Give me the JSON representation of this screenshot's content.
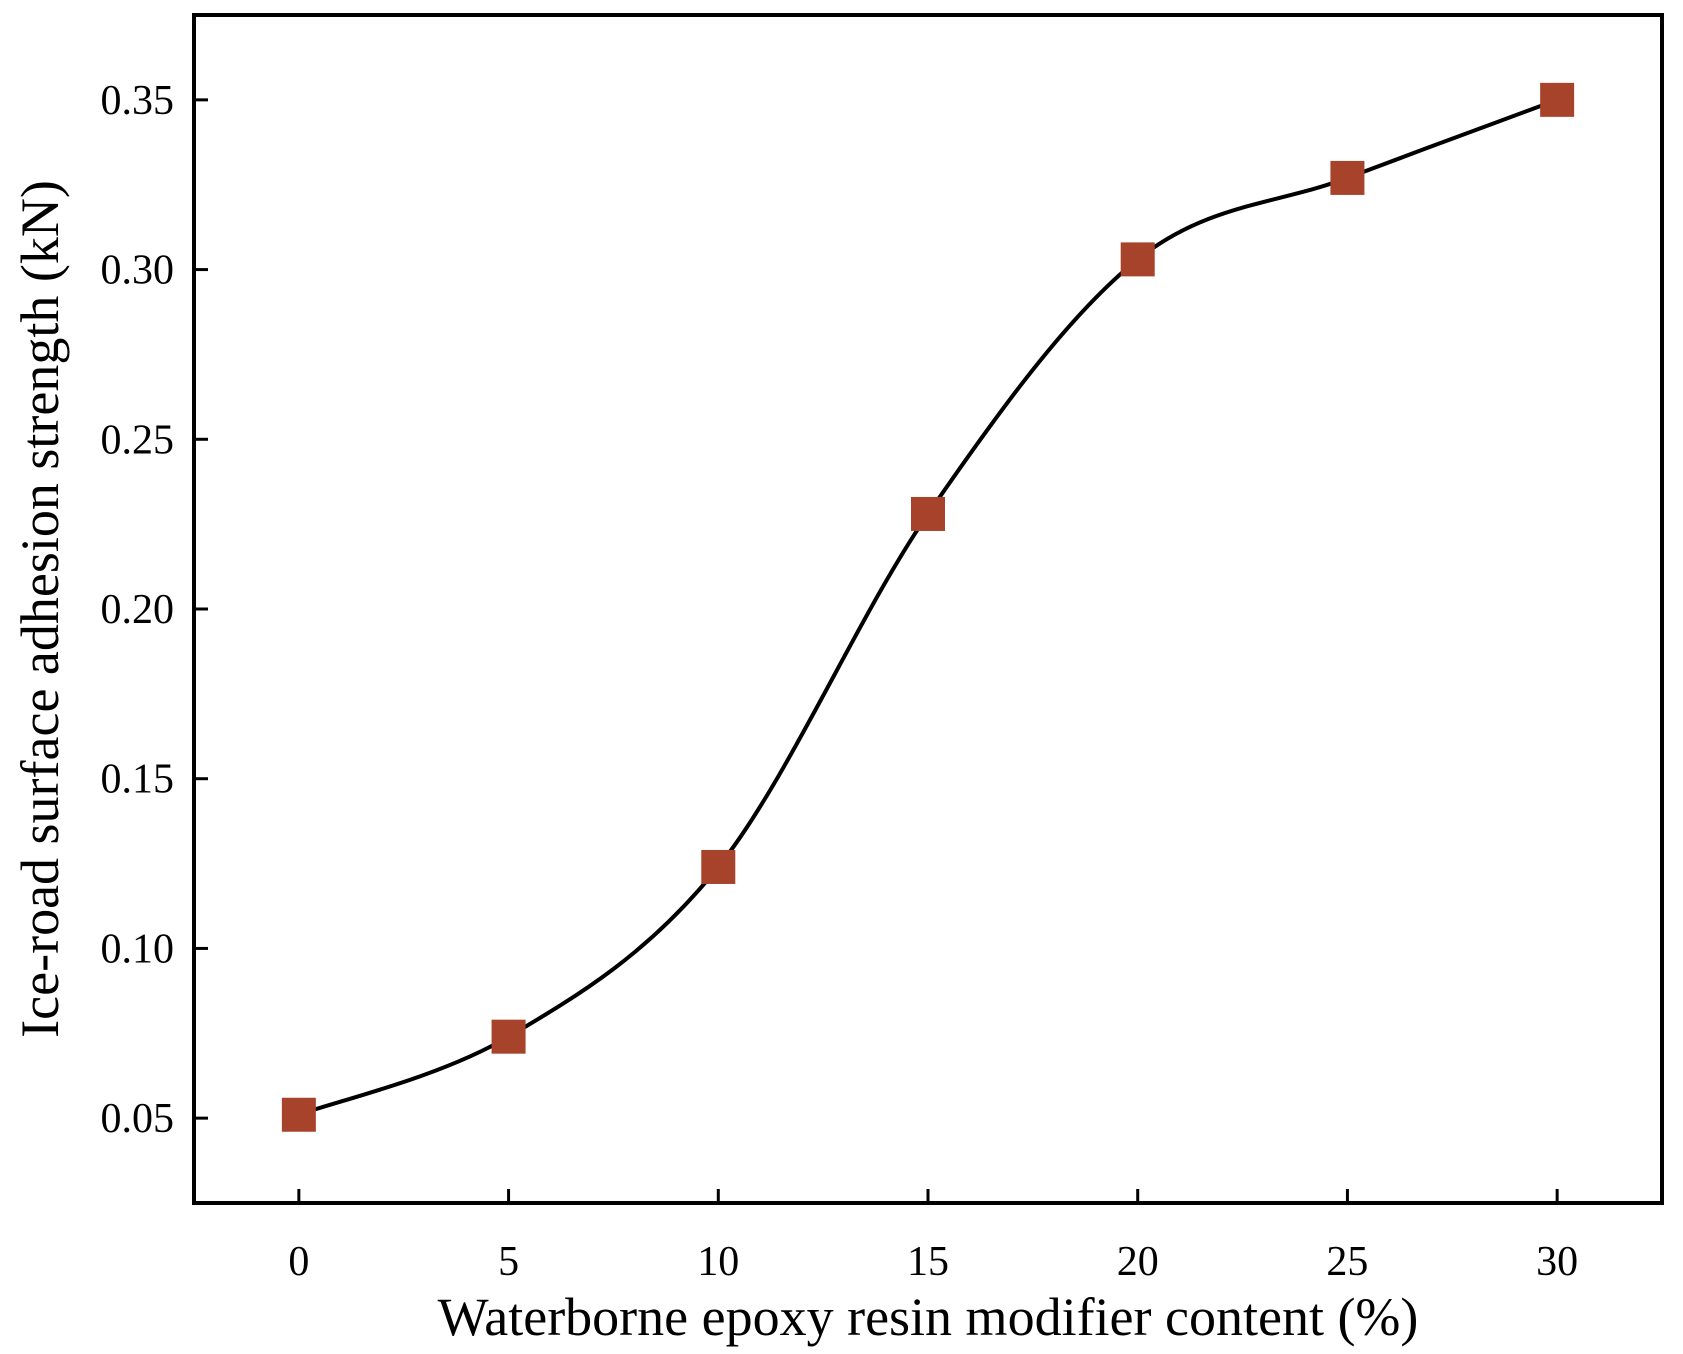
{
  "chart_data": {
    "type": "line",
    "xlabel": "Waterborne epoxy resin modifier content (%)",
    "ylabel": "Ice-road surface adhesion strength (kN)",
    "xlim": [
      -2.5,
      32.5
    ],
    "ylim": [
      0.025,
      0.375
    ],
    "xticks": [
      0,
      5,
      10,
      15,
      20,
      25,
      30
    ],
    "xtick_labels": [
      "0",
      "5",
      "10",
      "15",
      "20",
      "25",
      "30"
    ],
    "yticks": [
      0.05,
      0.1,
      0.15,
      0.2,
      0.25,
      0.3,
      0.35
    ],
    "ytick_labels": [
      "0.05",
      "0.10",
      "0.15",
      "0.20",
      "0.25",
      "0.30",
      "0.35"
    ],
    "grid": false,
    "legend": false,
    "series": [
      {
        "x": [
          0,
          5,
          10,
          15,
          20,
          25,
          30
        ],
        "values": [
          0.051,
          0.074,
          0.124,
          0.228,
          0.303,
          0.327,
          0.35
        ],
        "marker": "square",
        "marker_color": "#a8432b",
        "line_color": "#000000",
        "line_style": "smooth"
      }
    ]
  }
}
